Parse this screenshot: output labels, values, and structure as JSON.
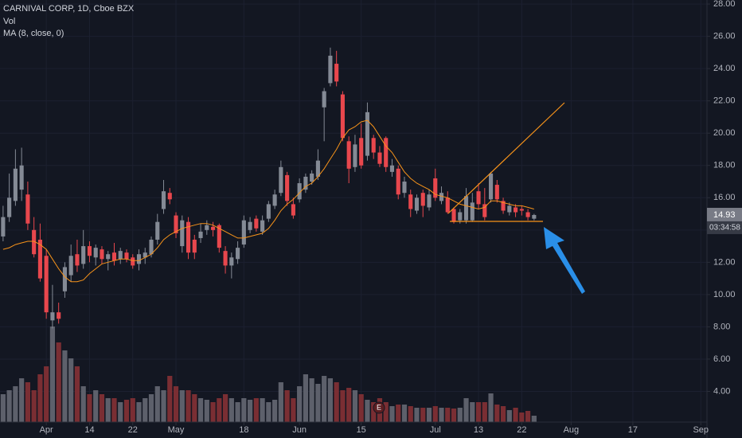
{
  "chart_data": {
    "type": "candlestick",
    "title": "CARNIVAL CORP, 1D, Cboe BZX",
    "up_color": "#848a95",
    "down_color": "#e8474d",
    "open": [
      13.6,
      14.8,
      15.8,
      16.5,
      16.2,
      14.0,
      13.4,
      12.4,
      8.4,
      8.9,
      10.2,
      11.2,
      12.5,
      11.9,
      13.0,
      12.3,
      12.8,
      12.2,
      12.6,
      12.2,
      12.6,
      12.3,
      11.9,
      12.3,
      12.5,
      13.4,
      15.3,
      16.3,
      14.9,
      13.0,
      14.5,
      13.4,
      13.5,
      14.0,
      14.2,
      14.3,
      12.7,
      11.8,
      12.2,
      13.1,
      14.0,
      14.7,
      13.9,
      14.7,
      15.5,
      16.3,
      17.4,
      15.6,
      15.9,
      16.5,
      17.0,
      17.3,
      21.6,
      23.1,
      24.3,
      22.4,
      19.5,
      17.9,
      19.7,
      18.6,
      19.7,
      18.8,
      19.7,
      17.6,
      17.8,
      16.3,
      16.2,
      15.2,
      16.3,
      15.4,
      17.2,
      15.8,
      16.0,
      15.3,
      14.6,
      14.6,
      14.6,
      16.4,
      15.6,
      15.9,
      16.8,
      15.8,
      15.1,
      15.4,
      15.3,
      15.1,
      14.7
    ],
    "high": [
      15.5,
      17.5,
      19.0,
      19.1,
      17.0,
      14.8,
      14.4,
      12.8,
      10.6,
      9.5,
      12.0,
      13.1,
      13.4,
      14.0,
      13.3,
      13.1,
      13.0,
      12.7,
      13.2,
      12.9,
      12.8,
      12.5,
      12.8,
      12.9,
      13.6,
      15.0,
      17.1,
      16.6,
      15.1,
      14.9,
      14.8,
      13.7,
      14.4,
      14.6,
      14.5,
      14.4,
      13.0,
      12.6,
      13.3,
      14.9,
      14.8,
      14.9,
      14.9,
      15.8,
      16.5,
      18.3,
      17.6,
      16.0,
      17.2,
      17.5,
      17.7,
      19.0,
      22.8,
      25.3,
      25.1,
      22.6,
      19.8,
      19.9,
      20.6,
      21.9,
      19.9,
      19.2,
      19.8,
      18.4,
      18.0,
      17.3,
      16.5,
      16.2,
      16.5,
      16.5,
      17.8,
      16.7,
      16.4,
      15.4,
      15.3,
      16.6,
      16.3,
      16.9,
      16.6,
      17.6,
      17.1,
      16.0,
      15.7,
      15.6,
      15.5,
      15.3,
      15.0
    ],
    "low": [
      13.3,
      14.5,
      15.5,
      15.8,
      14.0,
      12.3,
      10.8,
      8.5,
      7.9,
      8.2,
      9.8,
      10.8,
      11.4,
      11.6,
      12.0,
      11.8,
      11.9,
      11.5,
      11.8,
      11.9,
      12.0,
      11.6,
      11.5,
      11.9,
      12.3,
      13.1,
      15.0,
      15.6,
      13.5,
      12.6,
      12.2,
      12.2,
      13.2,
      13.7,
      13.6,
      12.6,
      11.3,
      11.0,
      11.9,
      12.9,
      13.8,
      13.9,
      13.7,
      14.5,
      15.3,
      16.1,
      15.5,
      14.7,
      15.7,
      16.3,
      16.8,
      17.1,
      19.5,
      22.9,
      22.9,
      19.5,
      16.9,
      17.6,
      17.8,
      18.3,
      18.4,
      17.9,
      17.6,
      17.3,
      15.9,
      16.0,
      14.8,
      15.0,
      14.8,
      15.2,
      15.8,
      15.6,
      15.0,
      14.4,
      14.4,
      14.4,
      14.5,
      15.3,
      14.6,
      15.7,
      15.7,
      15.0,
      14.9,
      14.8,
      14.9,
      14.6,
      14.6
    ],
    "close": [
      14.8,
      16.0,
      17.8,
      18.0,
      14.4,
      12.5,
      11.0,
      8.9,
      8.9,
      8.5,
      11.7,
      12.4,
      11.8,
      13.0,
      12.4,
      12.9,
      12.2,
      12.5,
      12.1,
      12.7,
      12.2,
      11.8,
      12.5,
      12.6,
      13.4,
      14.5,
      16.4,
      15.9,
      13.8,
      14.6,
      12.6,
      12.6,
      13.9,
      14.3,
      14.0,
      12.9,
      11.8,
      12.3,
      12.9,
      14.6,
      14.5,
      14.1,
      14.6,
      15.6,
      16.2,
      17.9,
      15.8,
      14.9,
      16.9,
      17.3,
      17.5,
      18.3,
      22.6,
      24.8,
      23.2,
      19.7,
      17.8,
      19.3,
      18.0,
      21.3,
      18.8,
      18.1,
      17.9,
      18.0,
      16.2,
      17.0,
      15.3,
      16.0,
      15.5,
      16.2,
      16.0,
      16.3,
      15.1,
      14.5,
      15.1,
      16.1,
      15.7,
      15.6,
      14.8,
      17.5,
      15.9,
      15.2,
      15.5,
      15.1,
      15.2,
      14.8,
      14.93
    ],
    "volume": {
      "name": "Vol",
      "up_color": "#5d606b",
      "down_color": "#7a2e33",
      "values": [
        35,
        40,
        45,
        55,
        50,
        40,
        60,
        70,
        120,
        100,
        90,
        80,
        70,
        45,
        35,
        40,
        35,
        30,
        30,
        25,
        28,
        30,
        25,
        30,
        35,
        45,
        40,
        58,
        45,
        40,
        40,
        35,
        30,
        28,
        25,
        30,
        35,
        30,
        25,
        30,
        28,
        30,
        30,
        25,
        28,
        50,
        40,
        30,
        45,
        60,
        55,
        48,
        58,
        55,
        50,
        40,
        43,
        40,
        35,
        28,
        25,
        30,
        25,
        20,
        22,
        22,
        20,
        18,
        18,
        18,
        20,
        18,
        18,
        17,
        18,
        30,
        25,
        25,
        25,
        36,
        22,
        20,
        15,
        18,
        12,
        14,
        8
      ]
    },
    "ma": {
      "name": "MA (8, close, 0)",
      "color": "#f7931a",
      "values": [
        12.8,
        12.9,
        13.1,
        13.2,
        13.3,
        13.3,
        13.1,
        12.8,
        12.2,
        11.6,
        11.1,
        10.8,
        10.8,
        10.9,
        11.3,
        11.6,
        11.9,
        12.0,
        12.1,
        12.2,
        12.2,
        12.1,
        12.1,
        12.3,
        12.5,
        12.9,
        13.4,
        13.7,
        13.9,
        14.1,
        14.2,
        14.3,
        14.4,
        14.4,
        14.3,
        14.1,
        13.9,
        13.7,
        13.5,
        13.5,
        13.6,
        13.7,
        13.8,
        14.1,
        14.6,
        15.2,
        15.6,
        15.9,
        16.3,
        16.7,
        16.9,
        17.3,
        17.8,
        18.4,
        19.0,
        19.7,
        20.2,
        20.4,
        20.7,
        20.8,
        20.4,
        19.8,
        19.2,
        18.8,
        18.2,
        17.6,
        17.2,
        16.9,
        16.7,
        16.5,
        16.2,
        16.1,
        16.0,
        15.8,
        15.6,
        15.5,
        15.4,
        15.3,
        15.4,
        15.8,
        15.8,
        15.7,
        15.6,
        15.5,
        15.5,
        15.4,
        15.3
      ]
    },
    "xlim": [
      -0.5,
      114
    ],
    "xticks": [
      {
        "value": 7,
        "label": "Apr"
      },
      14,
      {
        "value": 21,
        "label": "22"
      },
      {
        "value": 28,
        "label": "May"
      },
      {
        "value": 39,
        "label": "18"
      },
      {
        "value": 48,
        "label": "Jun"
      },
      {
        "value": 58,
        "label": "15"
      },
      {
        "value": 70,
        "label": "Jul"
      },
      {
        "value": 77,
        "label": "13"
      },
      {
        "value": 84,
        "label": "22"
      },
      {
        "value": 92,
        "label": "Aug"
      },
      {
        "value": 102,
        "label": "17"
      },
      {
        "value": 113,
        "label": "Sep"
      }
    ],
    "ylim": [
      2.1,
      28.25
    ],
    "yticks": [
      {
        "value": 4,
        "label": "4.00"
      },
      {
        "value": 6,
        "label": "6.00"
      },
      {
        "value": 8,
        "label": "8.00"
      },
      {
        "value": 10,
        "label": "10.00"
      },
      {
        "value": 12,
        "label": "12.00"
      },
      {
        "value": 14,
        "label": "14.00"
      },
      {
        "value": 16,
        "label": "16.00"
      },
      {
        "value": 18,
        "label": "18.00"
      },
      {
        "value": 20,
        "label": "20.00"
      },
      {
        "value": 22,
        "label": "22.00"
      },
      {
        "value": 24,
        "label": "24.00"
      },
      {
        "value": 26,
        "label": "26.00"
      },
      {
        "value": 28,
        "label": "28.00"
      }
    ],
    "grid": true,
    "countdown": "03:34:58",
    "earnings_marker": "E"
  }
}
